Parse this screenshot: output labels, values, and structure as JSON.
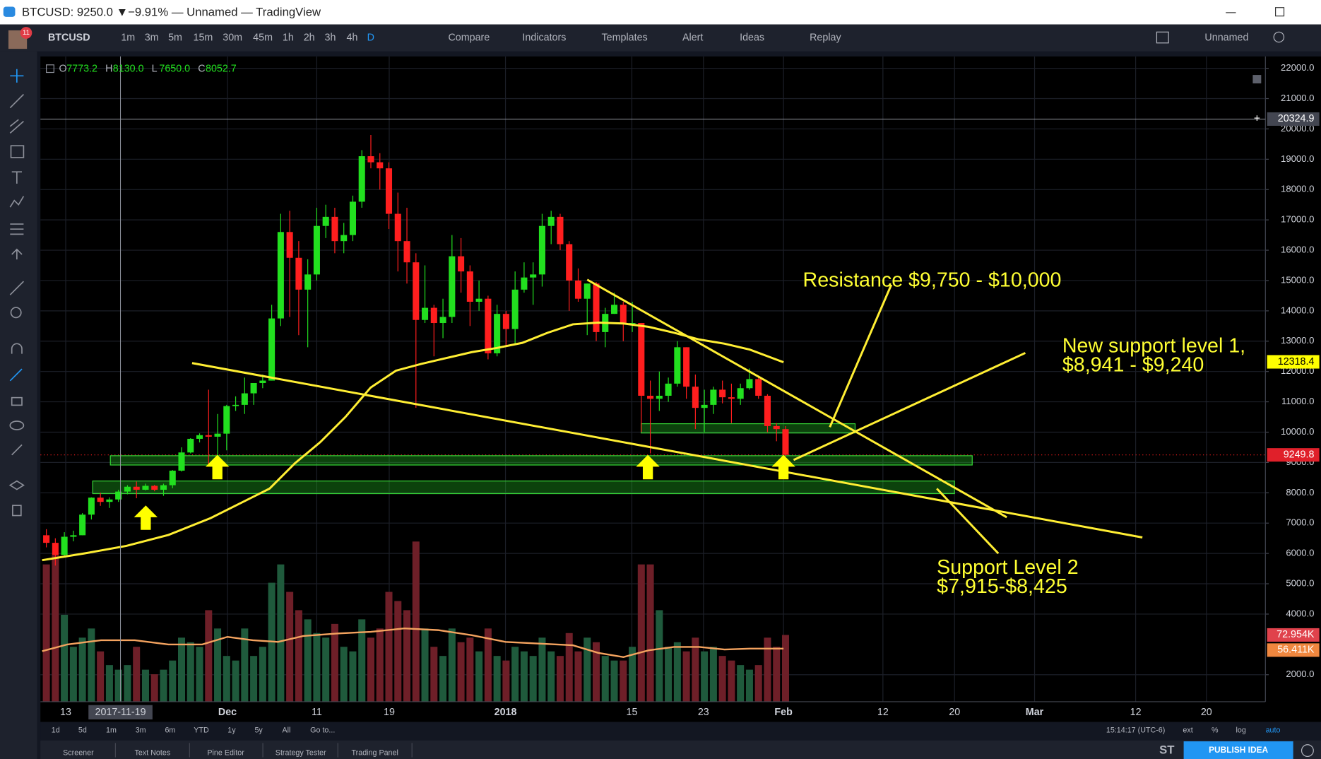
{
  "window": {
    "title": "BTCUSD: 9250.0 ▼−9.91% — Unnamed — TradingView"
  },
  "toolbar": {
    "symbol": "BTCUSD",
    "intervals": [
      "1m",
      "3m",
      "5m",
      "15m",
      "30m",
      "45m",
      "1h",
      "2h",
      "3h",
      "4h",
      "D"
    ],
    "buttons": [
      "Compare",
      "Indicators",
      "Templates",
      "Alert",
      "Ideas",
      "Replay"
    ],
    "layout_name": "Unnamed",
    "badge": "11"
  },
  "chart_data": {
    "type": "candlestick",
    "legend": [
      {
        "label": "O",
        "value": "7773.2"
      },
      {
        "label": "H",
        "value": "8130.0"
      },
      {
        "label": "L",
        "value": "7650.0"
      },
      {
        "label": "C",
        "value": "8052.7"
      }
    ],
    "open": [
      6600,
      6350,
      5950,
      6550,
      6600,
      7280,
      7840,
      7700,
      7780,
      8040,
      8200,
      8100,
      8230,
      8100,
      8250,
      8730,
      9330,
      9780,
      9900,
      9850,
      9950,
      10860,
      10900,
      11280,
      11620,
      11700,
      13750,
      16600,
      15750,
      14700,
      15200,
      16800,
      17100,
      16300,
      16500,
      17600,
      19100,
      18900,
      18700,
      17200,
      16300,
      15600,
      13700,
      14100,
      13600,
      13800,
      15800,
      15300,
      14300,
      14400,
      12600,
      13900,
      13400,
      14700,
      15100,
      15200,
      16800,
      17100,
      16200,
      15000,
      14400,
      14900,
      13300,
      13900,
      14200,
      13600,
      13600,
      11200,
      11100,
      11200,
      11600,
      12800,
      11500,
      10800,
      10900,
      11400,
      11150,
      11100,
      11450,
      11750,
      11200,
      10200,
      10100
    ],
    "high": [
      6800,
      6500,
      6700,
      6750,
      7330,
      7850,
      8000,
      7850,
      8100,
      8250,
      8370,
      8300,
      8260,
      8300,
      8750,
      9500,
      9800,
      9960,
      11400,
      10600,
      10900,
      11180,
      11800,
      11600,
      11900,
      14200,
      17200,
      17300,
      16300,
      15700,
      17400,
      17500,
      17400,
      16900,
      17800,
      19300,
      19800,
      19200,
      18900,
      17900,
      17400,
      15900,
      15500,
      14200,
      14400,
      16500,
      16400,
      15500,
      15000,
      14500,
      14200,
      14000,
      15300,
      15600,
      15600,
      17200,
      17300,
      17200,
      16300,
      15400,
      14900,
      14950,
      14100,
      14600,
      14300,
      14300,
      13600,
      11700,
      12000,
      11800,
      13000,
      12800,
      11900,
      11400,
      11500,
      11700,
      11600,
      11600,
      12100,
      11800,
      11250,
      10300,
      10200
    ],
    "low": [
      6200,
      5600,
      5900,
      6400,
      6600,
      7120,
      7570,
      7500,
      7700,
      7950,
      7820,
      8080,
      8050,
      7900,
      8150,
      8700,
      9300,
      9660,
      8900,
      9000,
      9400,
      10700,
      10600,
      10900,
      11450,
      11700,
      13500,
      13800,
      13200,
      12800,
      15000,
      16400,
      15900,
      15900,
      16300,
      17400,
      18700,
      18000,
      16700,
      15300,
      14900,
      10800,
      13600,
      12500,
      13100,
      13600,
      14600,
      13500,
      14000,
      12400,
      12500,
      12800,
      12900,
      14600,
      14200,
      14800,
      16200,
      16000,
      14000,
      14300,
      13200,
      13000,
      12800,
      13900,
      13000,
      13300,
      10000,
      9300,
      10700,
      11000,
      11500,
      11100,
      10100,
      10000,
      10600,
      10950,
      10300,
      10900,
      11400,
      11100,
      10000,
      9700,
      9200
    ],
    "close": [
      6350,
      5950,
      6550,
      6600,
      7280,
      7840,
      7700,
      7780,
      8040,
      8200,
      8100,
      8230,
      8100,
      8250,
      8730,
      9330,
      9780,
      9900,
      9850,
      9950,
      10860,
      10900,
      11280,
      11620,
      11700,
      13750,
      16600,
      15750,
      14700,
      15200,
      16800,
      17100,
      16300,
      16500,
      17600,
      19100,
      18900,
      18700,
      17200,
      16300,
      15600,
      13700,
      14100,
      13600,
      13800,
      15800,
      15300,
      14300,
      14400,
      12600,
      13900,
      13400,
      14700,
      15100,
      15200,
      16800,
      17100,
      16200,
      15000,
      14400,
      14900,
      13300,
      13900,
      14200,
      13600,
      13600,
      11200,
      11100,
      11200,
      11600,
      12800,
      11500,
      10800,
      10900,
      11400,
      11150,
      11100,
      11450,
      11750,
      11200,
      10200,
      10100,
      9250
    ],
    "volume": [
      150000,
      160000,
      95000,
      60000,
      70000,
      80000,
      55000,
      40000,
      35000,
      40000,
      60000,
      35000,
      30000,
      35000,
      45000,
      70000,
      65000,
      60000,
      100000,
      80000,
      50000,
      45000,
      80000,
      50000,
      60000,
      130000,
      150000,
      120000,
      100000,
      90000,
      75000,
      70000,
      85000,
      60000,
      55000,
      90000,
      70000,
      80000,
      120000,
      110000,
      100000,
      175000,
      80000,
      60000,
      50000,
      80000,
      65000,
      70000,
      55000,
      80000,
      50000,
      45000,
      60000,
      55000,
      50000,
      70000,
      55000,
      50000,
      75000,
      55000,
      70000,
      65000,
      50000,
      45000,
      45000,
      60000,
      150000,
      150000,
      100000,
      60000,
      65000,
      55000,
      70000,
      55000,
      60000,
      50000,
      45000,
      40000,
      35000,
      40000,
      70000,
      60000,
      72954
    ],
    "up_color": "#22e01f",
    "down_color": "#ff1e1e",
    "volume_up_color": "#1f5a3c",
    "volume_down_color": "#6e1f28",
    "ylim": [
      1110,
      22390
    ],
    "volume_lim": [
      0,
      705000
    ],
    "yticks": [
      {
        "value": 22000,
        "label": "22000.0"
      },
      {
        "value": 21000,
        "label": "21000.0"
      },
      {
        "value": 20000,
        "label": "20000.0"
      },
      {
        "value": 19000,
        "label": "19000.0"
      },
      {
        "value": 18000,
        "label": "18000.0"
      },
      {
        "value": 17000,
        "label": "17000.0"
      },
      {
        "value": 16000,
        "label": "16000.0"
      },
      {
        "value": 15000,
        "label": "15000.0"
      },
      {
        "value": 14000,
        "label": "14000.0"
      },
      {
        "value": 13000,
        "label": "13000.0"
      },
      {
        "value": 12000,
        "label": "12000.0"
      },
      {
        "value": 11000,
        "label": "11000.0"
      },
      {
        "value": 10000,
        "label": "10000.0"
      },
      {
        "value": 9000,
        "label": "9000.0"
      },
      {
        "value": 8000,
        "label": "8000.0"
      },
      {
        "value": 7000,
        "label": "7000.0"
      },
      {
        "value": 6000,
        "label": "6000.0"
      },
      {
        "value": 5000,
        "label": "5000.0"
      },
      {
        "value": 4000,
        "label": "4000.0"
      },
      {
        "value": 2000,
        "label": "2000.0"
      }
    ],
    "x_labels": [
      "13",
      "2017-11-19",
      "Dec",
      "11",
      "19",
      "2018",
      "15",
      "23",
      "Feb",
      "12",
      "20",
      "Mar",
      "12",
      "20"
    ],
    "crosshair_price": 20324.9,
    "ma_price": 12318.4,
    "last_price": 9249.8,
    "last_volume": {
      "value": 72954,
      "label": "72.954K"
    },
    "volume_ma": {
      "value": 56411,
      "label": "56.411K"
    },
    "grid": true,
    "annotations": [
      "Resistance $9,750 - $10,000",
      "New support level 1,",
      "$8,941 - $9,240",
      "Support Level 2",
      "$7,915-$8,425"
    ]
  },
  "bottom_bar": {
    "ranges": [
      "1d",
      "5d",
      "1m",
      "3m",
      "6m",
      "YTD",
      "1y",
      "5y",
      "All",
      "Go to..."
    ],
    "clock": "15:14:17 (UTC-6)",
    "options": [
      "ext",
      "%",
      "log",
      "auto"
    ]
  },
  "tabs": [
    "Screener",
    "Text Notes",
    "Pine Editor",
    "Strategy Tester",
    "Trading Panel"
  ],
  "footer": {
    "st": "ST",
    "publish": "PUBLISH IDEA"
  }
}
